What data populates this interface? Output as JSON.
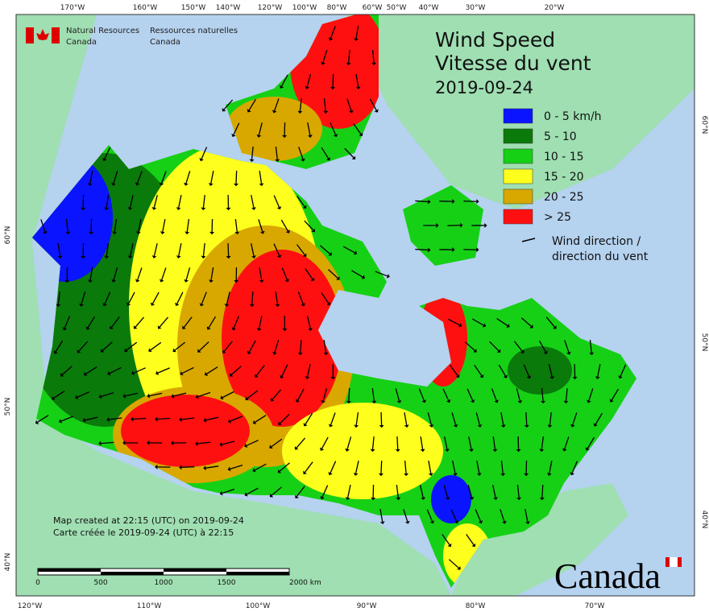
{
  "header": {
    "department_en": [
      "Natural Resources",
      "Canada"
    ],
    "department_fr": [
      "Ressources naturelles",
      "Canada"
    ]
  },
  "title": {
    "en": "Wind Speed",
    "fr": "Vitesse du vent",
    "date": "2019-09-24"
  },
  "legend": {
    "items": [
      {
        "label": "0 - 5 km/h",
        "color": "#0a14ff"
      },
      {
        "label": "5 - 10",
        "color": "#0a7a0a"
      },
      {
        "label": "10 - 15",
        "color": "#16d016"
      },
      {
        "label": "15 - 20",
        "color": "#ffff1e"
      },
      {
        "label": "20 - 25",
        "color": "#d8a800"
      },
      {
        "label": "> 25",
        "color": "#ff1010"
      }
    ],
    "arrow_label": [
      "Wind direction /",
      "direction du vent"
    ]
  },
  "graticule": {
    "top": [
      "170°W",
      "160°W",
      "150°W",
      "140°W",
      "120°W",
      "100°W",
      "80°W",
      "60°W",
      "50°W",
      "40°W",
      "30°W",
      "20°W"
    ],
    "bottom": [
      "120°W",
      "110°W",
      "100°W",
      "90°W",
      "80°W",
      "70°W"
    ],
    "left": [
      "60°N",
      "50°N",
      "40°N"
    ],
    "right": [
      "60°N",
      "50°N",
      "40°N"
    ]
  },
  "footer": [
    "Map created at 22:15 (UTC) on 2019-09-24",
    "Carte créée le 2019-09-24 (UTC) à 22:15"
  ],
  "scale_bar": [
    "0",
    "500",
    "1000",
    "1500",
    "2000 km"
  ],
  "wordmark": "Canada"
}
